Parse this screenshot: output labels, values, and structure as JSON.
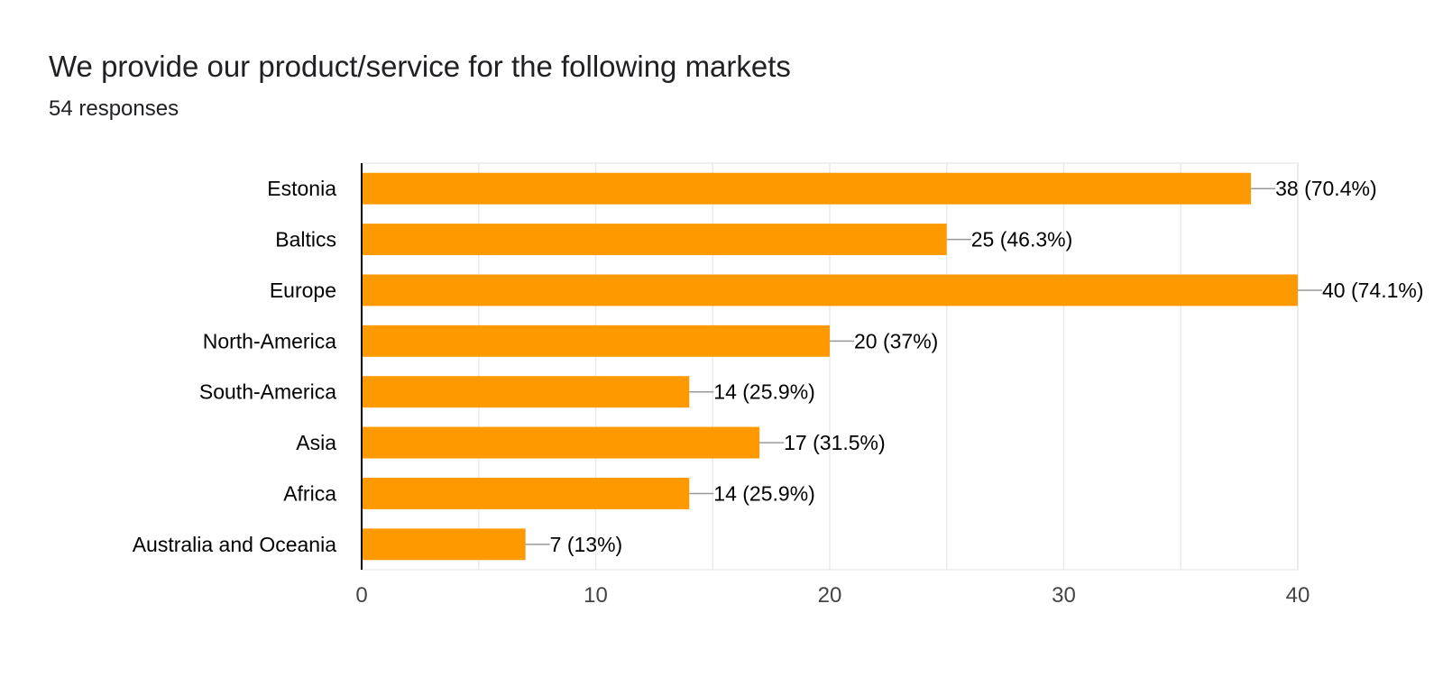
{
  "question": {
    "title": "We provide our product/service for the following markets",
    "responses": "54 responses"
  },
  "colors": {
    "bar": "#ff9900",
    "grid": "#e8eaed",
    "axis": "#000000",
    "text": "#202124",
    "tick_text": "#444444",
    "leader": "#999999"
  },
  "chart_data": {
    "type": "bar",
    "orientation": "horizontal",
    "categories": [
      "Estonia",
      "Baltics",
      "Europe",
      "North-America",
      "South-America",
      "Asia",
      "Africa",
      "Australia and Oceania"
    ],
    "values": [
      38,
      25,
      40,
      20,
      14,
      17,
      14,
      7
    ],
    "data_labels": [
      "38 (70.4%)",
      "25 (46.3%)",
      "40 (74.1%)",
      "20 (37%)",
      "14 (25.9%)",
      "17 (31.5%)",
      "14 (25.9%)",
      "7 (13%)"
    ],
    "xlim": [
      0,
      40
    ],
    "xticks": [
      0,
      10,
      20,
      30,
      40
    ],
    "grid": true,
    "legend": "none"
  }
}
